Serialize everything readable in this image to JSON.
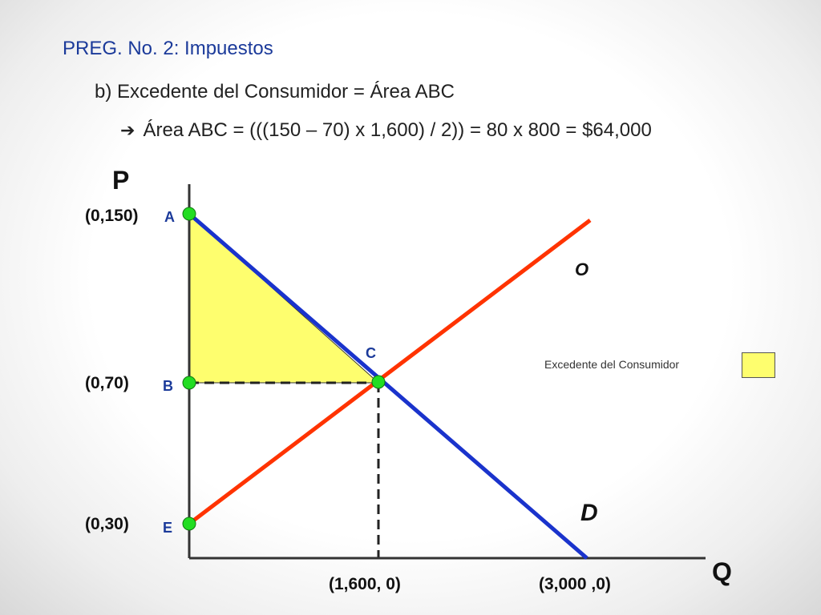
{
  "header": {
    "title": "PREG. No. 2: Impuestos",
    "line1": "b) Excedente del Consumidor = Área ABC",
    "line2_arrow": "➔",
    "line2": "Área ABC = (((150 – 70) x 1,600) / 2)) = 80 x 800 = $64,000"
  },
  "diagram": {
    "axis_y_label": "P",
    "axis_x_label": "Q",
    "points": {
      "A": {
        "name": "A",
        "coord": "(0,150)",
        "q": 0,
        "p": 150
      },
      "B": {
        "name": "B",
        "coord": "(0,70)",
        "q": 0,
        "p": 70
      },
      "C": {
        "name": "C",
        "q": 1600,
        "p": 70
      },
      "E": {
        "name": "E",
        "coord": "(0,30)",
        "q": 0,
        "p": 30
      }
    },
    "x_labels": {
      "eq": "(1,600, 0)",
      "end": "(3,000 ,0)"
    },
    "curves": {
      "supply": "O",
      "demand": "D"
    },
    "colors": {
      "supply": "#ff3300",
      "demand": "#1a33cc",
      "area": "#fefe6e",
      "point": "#22dd22"
    }
  },
  "legend": {
    "label": "Excedente del Consumidor"
  }
}
